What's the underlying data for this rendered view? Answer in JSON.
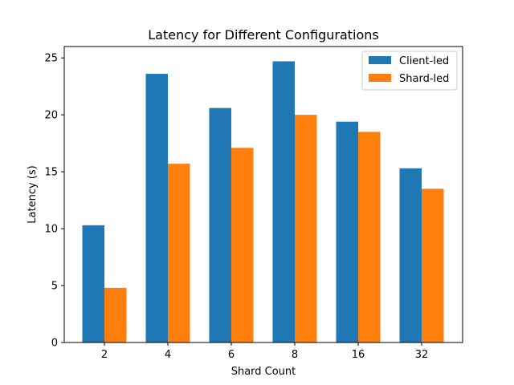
{
  "chart_data": {
    "type": "bar",
    "title": "Latency for Different Configurations",
    "xlabel": "Shard Count",
    "ylabel": "Latency (s)",
    "categories": [
      "2",
      "4",
      "6",
      "8",
      "16",
      "32"
    ],
    "ylim": [
      0,
      26
    ],
    "yticks": [
      0,
      5,
      10,
      15,
      20,
      25
    ],
    "grid": false,
    "legend_position": "top-right",
    "series": [
      {
        "name": "Client-led",
        "color": "#1f77b4",
        "values": [
          10.3,
          23.6,
          20.6,
          24.7,
          19.4,
          15.3
        ]
      },
      {
        "name": "Shard-led",
        "color": "#ff7f0e",
        "values": [
          4.8,
          15.7,
          17.1,
          20.0,
          18.5,
          13.5
        ]
      }
    ]
  }
}
